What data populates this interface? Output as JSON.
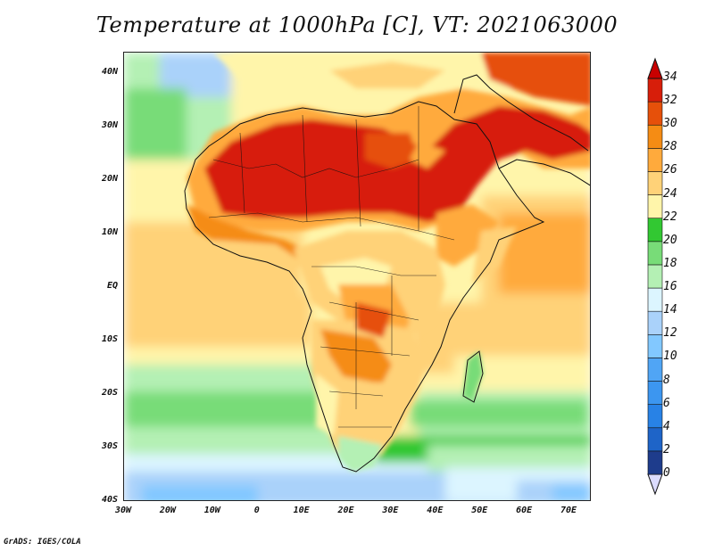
{
  "title": "Temperature at 1000hPa [C], VT: 2021063000",
  "credit": "GrADS: IGES/COLA",
  "map": {
    "lat_ticks": [
      "40N",
      "30N",
      "20N",
      "10N",
      "EQ",
      "10S",
      "20S",
      "30S",
      "40S"
    ],
    "lon_ticks": [
      "30W",
      "20W",
      "10W",
      "0",
      "10E",
      "20E",
      "30E",
      "40E",
      "50E",
      "60E",
      "70E"
    ],
    "lat_values": [
      40,
      30,
      20,
      10,
      0,
      -10,
      -20,
      -30,
      -40
    ],
    "lon_values": [
      -30,
      -20,
      -10,
      0,
      10,
      20,
      30,
      40,
      50,
      60,
      70
    ],
    "lon_range": [
      -30,
      75
    ],
    "lat_range": [
      -40,
      44
    ],
    "variable": "Temperature at 1000hPa",
    "units": "C",
    "valid_time": "2021063000"
  },
  "colorbar": {
    "levels": [
      0,
      2,
      4,
      6,
      8,
      10,
      12,
      14,
      16,
      18,
      20,
      22,
      24,
      26,
      28,
      30,
      32,
      34
    ],
    "labels": [
      "34",
      "32",
      "30",
      "28",
      "26",
      "24",
      "22",
      "20",
      "18",
      "16",
      "14",
      "12",
      "10",
      "8",
      "6",
      "4",
      "2",
      "0"
    ],
    "colors": [
      "#dcdcff",
      "#1e3c8c",
      "#1e64c8",
      "#2882e6",
      "#3c96f0",
      "#50a5f5",
      "#82c8ff",
      "#aad2fa",
      "#dcf5ff",
      "#b4f0b4",
      "#78dc78",
      "#32c832",
      "#fff5aa",
      "#ffd278",
      "#ffaa3c",
      "#f58c14",
      "#e6500a",
      "#d71e0a",
      "#c80000"
    ]
  }
}
